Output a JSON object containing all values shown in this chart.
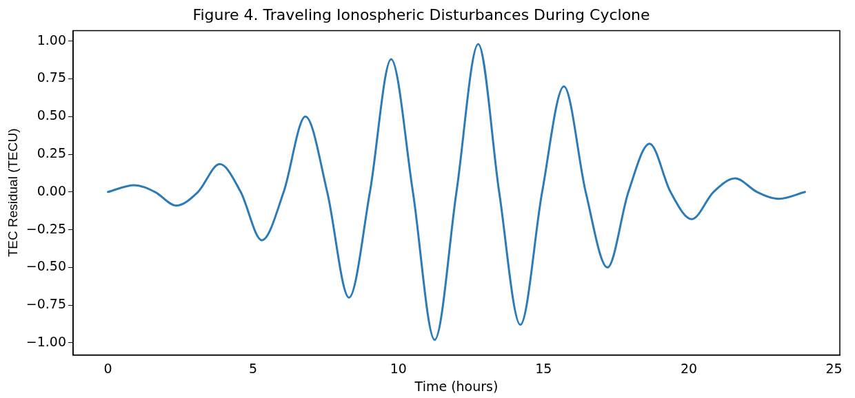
{
  "chart_data": {
    "type": "line",
    "title": "Figure 4. Traveling Ionospheric Disturbances During Cyclone",
    "xlabel": "Time (hours)",
    "ylabel": "TEC Residual (TECU)",
    "xlim": [
      -1.2,
      25.2
    ],
    "xticks": [
      0,
      5,
      10,
      15,
      20,
      25
    ],
    "ylim": [
      -1.08,
      1.07
    ],
    "yticks": [
      {
        "value": -1,
        "label": "−1.00"
      },
      {
        "value": -0.75,
        "label": "−0.75"
      },
      {
        "value": -0.5,
        "label": "−0.50"
      },
      {
        "value": -0.25,
        "label": "−0.25"
      },
      {
        "value": 0,
        "label": "0.00"
      },
      {
        "value": 0.25,
        "label": "0.25"
      },
      {
        "value": 0.5,
        "label": "0.50"
      },
      {
        "value": 0.75,
        "label": "0.75"
      },
      {
        "value": 1,
        "label": "1.00"
      }
    ],
    "grid": false,
    "legend": false,
    "marker": "none",
    "line_style": "solid",
    "series": [
      {
        "color": "#2b7bb9",
        "x": [
          0,
          0.9,
          1.62,
          2.35,
          3.1,
          3.85,
          4.57,
          5.3,
          6.05,
          6.8,
          7.55,
          8.3,
          9.02,
          9.75,
          10.5,
          11.25,
          12.0,
          12.75,
          13.47,
          14.2,
          14.95,
          15.7,
          16.45,
          17.2,
          17.92,
          18.65,
          19.37,
          20.1,
          20.85,
          21.6,
          22.35,
          23.1,
          24
        ],
        "values": [
          0,
          0.045,
          0,
          -0.09,
          0,
          0.185,
          0,
          -0.32,
          0,
          0.5,
          0,
          -0.7,
          0,
          0.88,
          0,
          -0.98,
          0,
          0.98,
          0,
          -0.88,
          0,
          0.7,
          0,
          -0.5,
          0,
          0.32,
          0,
          -0.18,
          0,
          0.09,
          0,
          -0.045,
          0
        ]
      }
    ]
  }
}
